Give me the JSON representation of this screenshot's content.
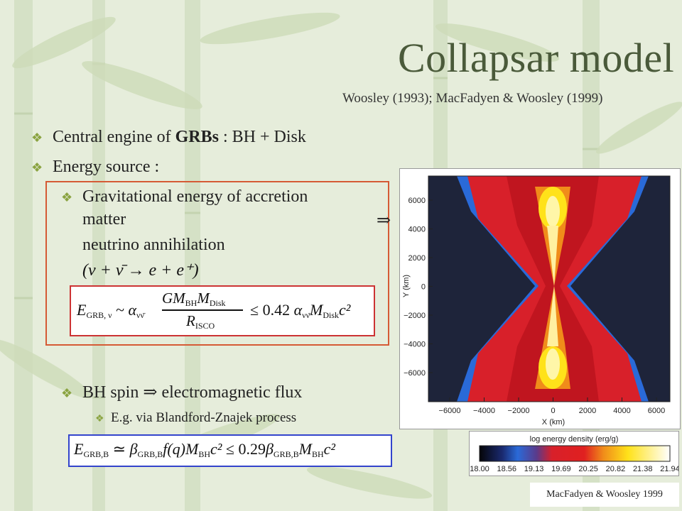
{
  "slide": {
    "title": "Collapsar model",
    "reference": "Woosley (1993); MacFadyen & Woosley (1999)",
    "bullets": {
      "central_engine_prefix": "Central engine of ",
      "central_engine_bold": "GRBs",
      "central_engine_suffix": " : BH + Disk",
      "energy_source": "Energy source :",
      "grav_line1": "Gravitational energy of accretion",
      "grav_line2": "matter",
      "implies_symbol": "⇒",
      "grav_line3": "neutrino annihilation",
      "bh_spin": "BH spin ⇒ electromagnetic flux",
      "blandford": "E.g. via Blandford-Znajek process"
    },
    "equations": {
      "reaction": "(ν + ν̄ → e + e⁺)",
      "neutrino_lhs": "E",
      "neutrino_lhs_sub": "GRB, ν",
      "neutrino_approx": "~",
      "neutrino_alpha_sub": "νν̄",
      "neutrino_num": "GM",
      "neutrino_num_sub1": "BH",
      "neutrino_num_sub2": "Disk",
      "neutrino_den": "R",
      "neutrino_den_sub": "ISCO",
      "neutrino_leq": "≤ 0.42",
      "neutrino_tail": "M",
      "neutrino_tail_sub": "Disk",
      "em_lhs": "E",
      "em_lhs_sub": "GRB,B",
      "em_sim": "≃",
      "em_beta_sub": "GRB,B",
      "em_mid": "f(q)M",
      "em_bh_sub": "BH",
      "em_leq": "≤ 0.29",
      "em_beta_sub2": "GRB,B",
      "em_tail": "M",
      "em_bh_sub2": "BH"
    },
    "figure": {
      "y_axis_label": "Y (km)",
      "x_axis_label": "X (km)",
      "y_ticks": [
        "6000",
        "4000",
        "2000",
        "0",
        "−2000",
        "−4000",
        "−6000"
      ],
      "x_ticks": [
        "−6000",
        "−4000",
        "−2000",
        "0",
        "2000",
        "4000",
        "6000"
      ],
      "colorbar_title": "log energy density (erg/g)",
      "colorbar_ticks": [
        "18.00",
        "18.56",
        "19.13",
        "19.69",
        "20.25",
        "20.82",
        "21.38",
        "21.94"
      ],
      "credit": "MacFadyen & Woosley 1999"
    },
    "colors": {
      "title": "#4a5a3a",
      "bullet": "#8aa340",
      "box_red": "#d55a35",
      "box_blue": "#3344cc"
    }
  }
}
